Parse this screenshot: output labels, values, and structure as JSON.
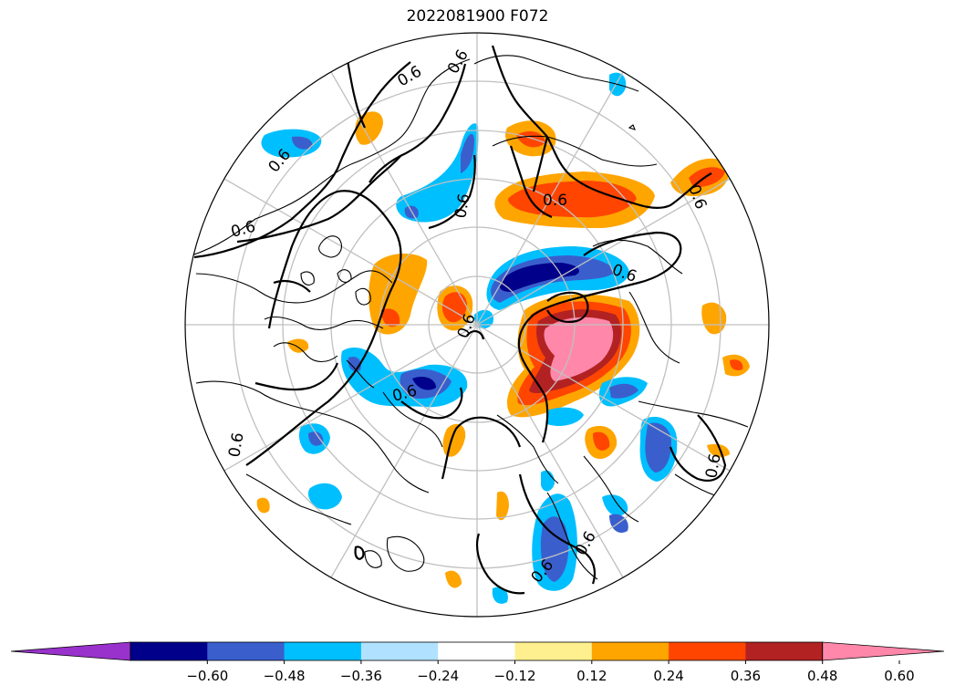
{
  "title": "2022081900 F072",
  "colorbar": {
    "tick_labels": [
      "−0.60",
      "−0.48",
      "−0.36",
      "−0.24",
      "−0.12",
      "0.12",
      "0.24",
      "0.36",
      "0.48",
      "0.60"
    ],
    "levels": [
      -0.6,
      -0.48,
      -0.36,
      -0.24,
      -0.12,
      0.12,
      0.24,
      0.36,
      0.48,
      0.6
    ],
    "colors": [
      "#9932cc",
      "#00008b",
      "#3a5fcd",
      "#00bfff",
      "#b0e2ff",
      "#ffffff",
      "#fff08f",
      "#ffa500",
      "#ff4500",
      "#b22222",
      "#ff88aa"
    ],
    "extend": "both"
  },
  "map": {
    "projection": "north-polar-stereographic",
    "contour_label": "0.6",
    "graticule": true,
    "coastlines": true
  }
}
